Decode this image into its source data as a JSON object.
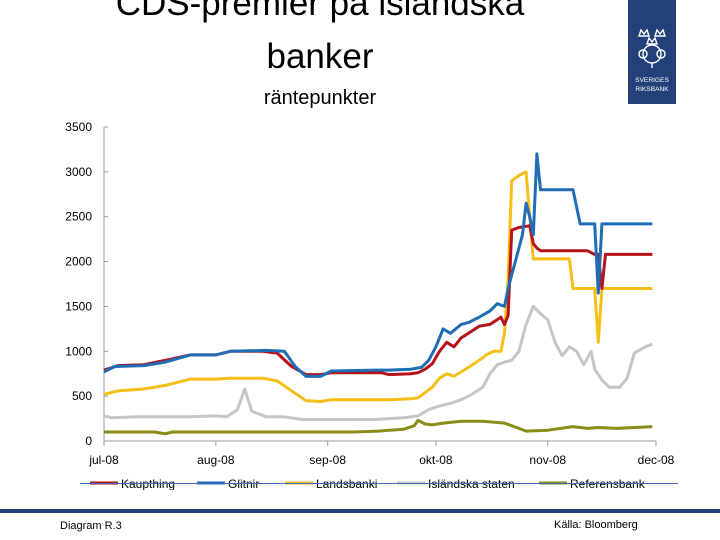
{
  "title_line1": "CDS-premier på isländska",
  "title_line2": "banker",
  "subtitle": "räntepunkter",
  "logo_text": [
    "SVERIGES",
    "RIKSBANK"
  ],
  "footer_left": "Diagram R.3",
  "footer_right": "Källa: Bloomberg",
  "chart_data": {
    "type": "line",
    "title": "CDS-premier på isländska banker",
    "ylabel": "räntepunkter",
    "ylim": [
      0,
      3500
    ],
    "yticks": [
      0,
      500,
      1000,
      1500,
      2000,
      2500,
      3000,
      3500
    ],
    "xlim": [
      "2008-07-01",
      "2008-12-01"
    ],
    "xticks": [
      {
        "date": "2008-07-01",
        "label": "jul-08"
      },
      {
        "date": "2008-08-01",
        "label": "aug-08"
      },
      {
        "date": "2008-09-01",
        "label": "sep-08"
      },
      {
        "date": "2008-10-01",
        "label": "okt-08"
      },
      {
        "date": "2008-11-01",
        "label": "nov-08"
      },
      {
        "date": "2008-12-01",
        "label": "dec-08"
      }
    ],
    "grid": false,
    "legend_placement": "bottom",
    "series": [
      {
        "name": "Kaupthing",
        "color": "#b5121b",
        "points": [
          [
            "2008-07-01",
            790
          ],
          [
            "2008-07-05",
            840
          ],
          [
            "2008-07-12",
            850
          ],
          [
            "2008-07-18",
            900
          ],
          [
            "2008-07-25",
            960
          ],
          [
            "2008-08-01",
            960
          ],
          [
            "2008-08-05",
            1000
          ],
          [
            "2008-08-14",
            1000
          ],
          [
            "2008-08-18",
            980
          ],
          [
            "2008-08-22",
            830
          ],
          [
            "2008-08-26",
            740
          ],
          [
            "2008-08-30",
            740
          ],
          [
            "2008-09-02",
            760
          ],
          [
            "2008-09-14",
            760
          ],
          [
            "2008-09-16",
            760
          ],
          [
            "2008-09-18",
            740
          ],
          [
            "2008-09-24",
            750
          ],
          [
            "2008-09-26",
            760
          ],
          [
            "2008-09-28",
            800
          ],
          [
            "2008-09-30",
            860
          ],
          [
            "2008-10-02",
            1000
          ],
          [
            "2008-10-04",
            1100
          ],
          [
            "2008-10-06",
            1050
          ],
          [
            "2008-10-08",
            1150
          ],
          [
            "2008-10-10",
            1200
          ],
          [
            "2008-10-13",
            1280
          ],
          [
            "2008-10-16",
            1300
          ],
          [
            "2008-10-19",
            1380
          ],
          [
            "2008-10-20",
            1300
          ],
          [
            "2008-10-21",
            1400
          ],
          [
            "2008-10-22",
            2350
          ],
          [
            "2008-10-24",
            2380
          ],
          [
            "2008-10-27",
            2400
          ],
          [
            "2008-10-28",
            2200
          ],
          [
            "2008-10-29",
            2150
          ],
          [
            "2008-10-30",
            2120
          ],
          [
            "2008-11-07",
            2120
          ],
          [
            "2008-11-12",
            2120
          ],
          [
            "2008-11-14",
            2080
          ],
          [
            "2008-11-15",
            2080
          ],
          [
            "2008-11-16",
            1700
          ],
          [
            "2008-11-17",
            2080
          ],
          [
            "2008-11-30",
            2080
          ]
        ]
      },
      {
        "name": "Glitnir",
        "color": "#1f6db5",
        "points": [
          [
            "2008-07-01",
            770
          ],
          [
            "2008-07-04",
            830
          ],
          [
            "2008-07-12",
            840
          ],
          [
            "2008-07-18",
            880
          ],
          [
            "2008-07-25",
            960
          ],
          [
            "2008-08-01",
            960
          ],
          [
            "2008-08-05",
            1000
          ],
          [
            "2008-08-15",
            1010
          ],
          [
            "2008-08-20",
            1000
          ],
          [
            "2008-08-23",
            830
          ],
          [
            "2008-08-26",
            720
          ],
          [
            "2008-08-30",
            720
          ],
          [
            "2008-09-02",
            780
          ],
          [
            "2008-09-14",
            790
          ],
          [
            "2008-09-16",
            790
          ],
          [
            "2008-09-18",
            790
          ],
          [
            "2008-09-24",
            800
          ],
          [
            "2008-09-27",
            820
          ],
          [
            "2008-09-29",
            900
          ],
          [
            "2008-10-01",
            1050
          ],
          [
            "2008-10-03",
            1250
          ],
          [
            "2008-10-05",
            1200
          ],
          [
            "2008-10-08",
            1300
          ],
          [
            "2008-10-10",
            1320
          ],
          [
            "2008-10-13",
            1380
          ],
          [
            "2008-10-16",
            1450
          ],
          [
            "2008-10-18",
            1530
          ],
          [
            "2008-10-20",
            1500
          ],
          [
            "2008-10-21",
            1700
          ],
          [
            "2008-10-23",
            2000
          ],
          [
            "2008-10-25",
            2300
          ],
          [
            "2008-10-26",
            2650
          ],
          [
            "2008-10-27",
            2500
          ],
          [
            "2008-10-28",
            2300
          ],
          [
            "2008-10-29",
            3200
          ],
          [
            "2008-10-30",
            2800
          ],
          [
            "2008-11-01",
            2800
          ],
          [
            "2008-11-08",
            2800
          ],
          [
            "2008-11-10",
            2420
          ],
          [
            "2008-11-14",
            2420
          ],
          [
            "2008-11-15",
            1650
          ],
          [
            "2008-11-16",
            2420
          ],
          [
            "2008-11-30",
            2420
          ]
        ]
      },
      {
        "name": "Landsbanki",
        "color": "#f5bf17",
        "points": [
          [
            "2008-07-01",
            520
          ],
          [
            "2008-07-05",
            560
          ],
          [
            "2008-07-12",
            580
          ],
          [
            "2008-07-18",
            620
          ],
          [
            "2008-07-25",
            690
          ],
          [
            "2008-08-01",
            690
          ],
          [
            "2008-08-05",
            700
          ],
          [
            "2008-08-14",
            700
          ],
          [
            "2008-08-18",
            670
          ],
          [
            "2008-08-22",
            560
          ],
          [
            "2008-08-26",
            450
          ],
          [
            "2008-08-30",
            440
          ],
          [
            "2008-09-02",
            460
          ],
          [
            "2008-09-14",
            460
          ],
          [
            "2008-09-16",
            460
          ],
          [
            "2008-09-18",
            460
          ],
          [
            "2008-09-24",
            470
          ],
          [
            "2008-09-26",
            480
          ],
          [
            "2008-09-28",
            540
          ],
          [
            "2008-09-30",
            600
          ],
          [
            "2008-10-02",
            700
          ],
          [
            "2008-10-04",
            750
          ],
          [
            "2008-10-06",
            720
          ],
          [
            "2008-10-08",
            770
          ],
          [
            "2008-10-10",
            820
          ],
          [
            "2008-10-13",
            900
          ],
          [
            "2008-10-15",
            960
          ],
          [
            "2008-10-17",
            1000
          ],
          [
            "2008-10-19",
            1000
          ],
          [
            "2008-10-20",
            1200
          ],
          [
            "2008-10-21",
            1800
          ],
          [
            "2008-10-22",
            2900
          ],
          [
            "2008-10-24",
            2960
          ],
          [
            "2008-10-26",
            3000
          ],
          [
            "2008-10-27",
            2500
          ],
          [
            "2008-10-28",
            2030
          ],
          [
            "2008-11-07",
            2030
          ],
          [
            "2008-11-08",
            1700
          ],
          [
            "2008-11-14",
            1700
          ],
          [
            "2008-11-15",
            1100
          ],
          [
            "2008-11-16",
            1700
          ],
          [
            "2008-11-30",
            1700
          ]
        ]
      },
      {
        "name": "Isländska staten",
        "color": "#c6c6c6",
        "points": [
          [
            "2008-07-01",
            280
          ],
          [
            "2008-07-03",
            260
          ],
          [
            "2008-07-10",
            270
          ],
          [
            "2008-07-18",
            270
          ],
          [
            "2008-07-25",
            270
          ],
          [
            "2008-08-01",
            280
          ],
          [
            "2008-08-04",
            270
          ],
          [
            "2008-08-07",
            350
          ],
          [
            "2008-08-09",
            580
          ],
          [
            "2008-08-11",
            330
          ],
          [
            "2008-08-15",
            270
          ],
          [
            "2008-08-20",
            270
          ],
          [
            "2008-08-25",
            240
          ],
          [
            "2008-08-30",
            240
          ],
          [
            "2008-09-05",
            240
          ],
          [
            "2008-09-14",
            240
          ],
          [
            "2008-09-18",
            250
          ],
          [
            "2008-09-22",
            260
          ],
          [
            "2008-09-26",
            280
          ],
          [
            "2008-09-29",
            350
          ],
          [
            "2008-10-02",
            390
          ],
          [
            "2008-10-05",
            420
          ],
          [
            "2008-10-08",
            460
          ],
          [
            "2008-10-11",
            520
          ],
          [
            "2008-10-14",
            600
          ],
          [
            "2008-10-16",
            750
          ],
          [
            "2008-10-18",
            850
          ],
          [
            "2008-10-20",
            880
          ],
          [
            "2008-10-22",
            900
          ],
          [
            "2008-10-24",
            1000
          ],
          [
            "2008-10-26",
            1300
          ],
          [
            "2008-10-28",
            1500
          ],
          [
            "2008-10-30",
            1420
          ],
          [
            "2008-11-01",
            1350
          ],
          [
            "2008-11-03",
            1100
          ],
          [
            "2008-11-05",
            950
          ],
          [
            "2008-11-07",
            1050
          ],
          [
            "2008-11-09",
            1000
          ],
          [
            "2008-11-11",
            850
          ],
          [
            "2008-11-13",
            1000
          ],
          [
            "2008-11-14",
            800
          ],
          [
            "2008-11-16",
            680
          ],
          [
            "2008-11-18",
            600
          ],
          [
            "2008-11-21",
            600
          ],
          [
            "2008-11-23",
            700
          ],
          [
            "2008-11-25",
            980
          ],
          [
            "2008-11-28",
            1050
          ],
          [
            "2008-11-30",
            1080
          ]
        ]
      },
      {
        "name": "Referensbank",
        "color": "#8b8b17",
        "points": [
          [
            "2008-07-01",
            100
          ],
          [
            "2008-07-15",
            100
          ],
          [
            "2008-07-18",
            80
          ],
          [
            "2008-07-20",
            100
          ],
          [
            "2008-08-01",
            100
          ],
          [
            "2008-09-01",
            100
          ],
          [
            "2008-09-08",
            100
          ],
          [
            "2008-09-15",
            110
          ],
          [
            "2008-09-22",
            130
          ],
          [
            "2008-09-25",
            170
          ],
          [
            "2008-09-26",
            230
          ],
          [
            "2008-09-28",
            190
          ],
          [
            "2008-09-30",
            180
          ],
          [
            "2008-10-03",
            200
          ],
          [
            "2008-10-08",
            220
          ],
          [
            "2008-10-14",
            220
          ],
          [
            "2008-10-20",
            200
          ],
          [
            "2008-10-24",
            140
          ],
          [
            "2008-10-26",
            110
          ],
          [
            "2008-11-01",
            120
          ],
          [
            "2008-11-08",
            160
          ],
          [
            "2008-11-12",
            140
          ],
          [
            "2008-11-15",
            150
          ],
          [
            "2008-11-20",
            140
          ],
          [
            "2008-11-25",
            150
          ],
          [
            "2008-11-30",
            160
          ]
        ]
      }
    ]
  }
}
